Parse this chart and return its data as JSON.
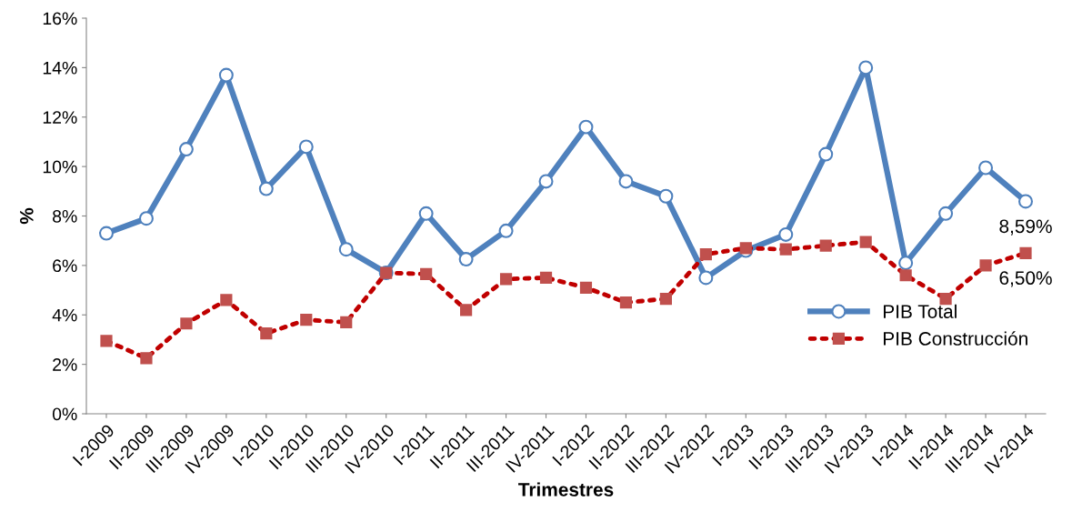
{
  "chart_data": {
    "type": "line",
    "xlabel": "Trimestres",
    "ylabel": "%",
    "categories": [
      "I-2009",
      "II-2009",
      "III-2009",
      "IV-2009",
      "I-2010",
      "II-2010",
      "III-2010",
      "IV-2010",
      "I-2011",
      "II-2011",
      "III-2011",
      "IV-2011",
      "I-2012",
      "II-2012",
      "III-2012",
      "IV-2012",
      "I-2013",
      "II-2013",
      "III-2013",
      "IV-2013",
      "I-2014",
      "II-2014",
      "III-2014",
      "IV-2014"
    ],
    "series": [
      {
        "name": "PIB Total",
        "color": "#4f81bd",
        "marker": "circle",
        "line_style": "solid",
        "values": [
          7.3,
          7.9,
          10.7,
          13.7,
          9.1,
          10.8,
          6.65,
          5.7,
          8.1,
          6.25,
          7.4,
          9.4,
          11.6,
          9.4,
          8.8,
          5.5,
          6.6,
          7.25,
          10.5,
          14.0,
          6.1,
          8.1,
          9.95,
          8.59
        ],
        "value_labels": [
          null,
          null,
          null,
          null,
          null,
          null,
          null,
          null,
          null,
          null,
          null,
          null,
          null,
          null,
          null,
          null,
          null,
          null,
          null,
          null,
          null,
          null,
          null,
          "8,59%"
        ]
      },
      {
        "name": "PIB Construcción",
        "color": "#c0504d",
        "marker": "square",
        "line_style": "dotted",
        "values": [
          2.95,
          2.25,
          3.65,
          4.6,
          3.25,
          3.8,
          3.7,
          5.7,
          5.65,
          4.2,
          5.45,
          5.5,
          5.1,
          4.5,
          4.65,
          6.45,
          6.7,
          6.65,
          6.8,
          6.95,
          5.6,
          4.65,
          6.0,
          6.5
        ],
        "value_labels": [
          null,
          null,
          null,
          null,
          null,
          null,
          null,
          null,
          null,
          null,
          null,
          null,
          null,
          null,
          null,
          null,
          null,
          null,
          null,
          null,
          null,
          null,
          null,
          "6,50%"
        ]
      }
    ],
    "ylim": [
      0,
      16
    ],
    "yticks": [
      {
        "value": 0,
        "label": "0%"
      },
      {
        "value": 2,
        "label": "2%"
      },
      {
        "value": 4,
        "label": "4%"
      },
      {
        "value": 6,
        "label": "6%"
      },
      {
        "value": 8,
        "label": "8%"
      },
      {
        "value": 10,
        "label": "10%"
      },
      {
        "value": 12,
        "label": "12%"
      },
      {
        "value": 14,
        "label": "14%"
      },
      {
        "value": 16,
        "label": "16%"
      }
    ],
    "grid": false,
    "legend": "right"
  }
}
